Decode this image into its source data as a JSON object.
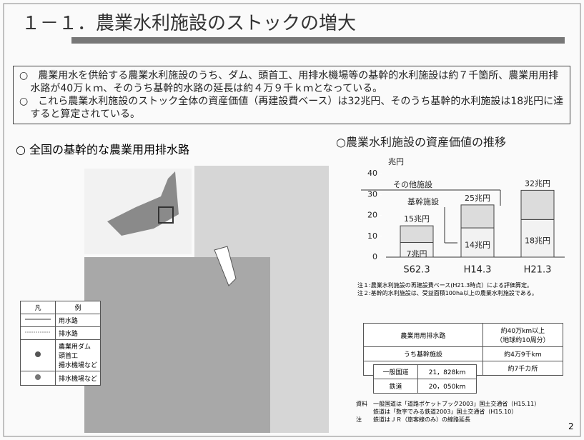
{
  "header": {
    "title": "１－１．農業水利施設のストックの増大"
  },
  "summary": [
    "○　農業用水を供給する農業水利施設のうち、ダム、頭首工、用排水機場等の基幹的水利施設は約７千箇所、農業用用排水路が40万ｋｍ、そのうち基幹的水路の延長は約４万９千ｋｍとなっている。",
    "○　これら農業水利施設のストック全体の資産価値（再建設費ベース）は32兆円、そのうち基幹的水利施設は18兆円に達すると算定されている。"
  ],
  "map": {
    "title": "○ 全国の基幹的な農業用用排水路",
    "legend": {
      "header": [
        "凡",
        "例"
      ],
      "rows": [
        "用水路",
        "排水路",
        "農業用ダム\n頭首工\n揚水機場など",
        "排水機場など"
      ]
    }
  },
  "chart_data": {
    "type": "bar",
    "stacked": true,
    "title": "○農業水利施設の資産価値の推移",
    "y_label": "兆円",
    "categories": [
      "S62.3",
      "H14.3",
      "H21.3"
    ],
    "series": [
      {
        "name": "基幹施設",
        "color": "#f2f2f2",
        "values": [
          7,
          14,
          18
        ],
        "value_labels": [
          "7兆円",
          "14兆円",
          "18兆円"
        ]
      },
      {
        "name": "その他施設",
        "color": "#dcdcdc",
        "values": [
          8,
          11,
          14
        ]
      }
    ],
    "total_labels": [
      "15兆円",
      "25兆円",
      "32兆円"
    ],
    "ylim": [
      0,
      40
    ],
    "yticks": [
      0,
      10,
      20,
      30,
      40
    ],
    "notes": [
      "注１:農業水利施設の再建設費ベース(H21.3時点）による評価算定。",
      "注２:基幹的水利施設は、受益面積100ha以上の農業水利施設である。"
    ]
  },
  "stats_table": {
    "rows": [
      [
        "農業用用排水路",
        "約40万km以上\n（地球約10周分）"
      ],
      [
        "うち基幹施設",
        "約4万9千km"
      ],
      [
        "ダム、頭首工、用排水機場等",
        "約7千カ所"
      ]
    ]
  },
  "road_table": {
    "rows": [
      [
        "一般国道",
        "21，828km"
      ],
      [
        "鉄道",
        "20，050km"
      ]
    ]
  },
  "sources": [
    "資料　一般国道は「道路ポケットブック2003」国土交通省（H15.11）",
    "　　　鉄道は「数字でみる鉄道2003」国土交通省（H15.10）",
    "注　　鉄道はＪＲ（旅客線のみ）の線路延長"
  ],
  "page_number": "2"
}
